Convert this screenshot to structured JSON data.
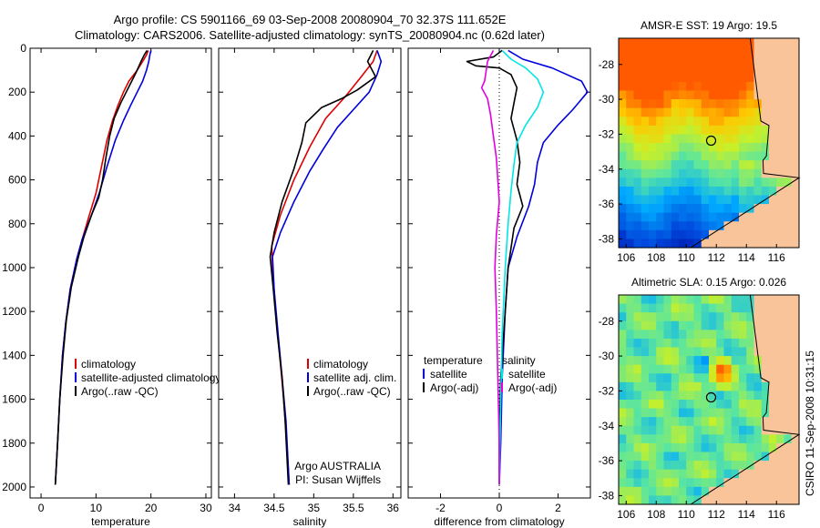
{
  "header": {
    "line1": "Argo profile: CS 5901166_69 03-Sep-2008 20080904_70 32.37S 111.652E",
    "line2": "Climatology: CARS2006. Satellite-adjusted climatology: synTS_20080904.nc (0.62d later)"
  },
  "side_label": "CSIRO 11-Sep-2008 10:31:15",
  "colors": {
    "climatology": "#dd0000",
    "satellite": "#0000dd",
    "argo": "#000000",
    "satellite_salinity": "#00e5e5",
    "argo_salinity": "#e000e0",
    "land": "#f9c49a"
  },
  "chart_data": [
    {
      "type": "line",
      "panel": "temperature",
      "xlabel": "temperature",
      "ylabel": "",
      "xlim": [
        -2,
        31
      ],
      "ylim": [
        2050,
        0
      ],
      "xticks": [
        0,
        10,
        20,
        30
      ],
      "yticks": [
        0,
        200,
        400,
        600,
        800,
        1000,
        1200,
        1400,
        1600,
        1800,
        2000
      ],
      "legend": [
        "climatology",
        "satellite-adjusted climatology",
        "Argo(..raw -QC)"
      ],
      "series": [
        {
          "name": "climatology",
          "color": "#dd0000",
          "points": [
            [
              19.5,
              10
            ],
            [
              19.2,
              30
            ],
            [
              18.5,
              60
            ],
            [
              17.5,
              100
            ],
            [
              16,
              150
            ],
            [
              15,
              200
            ],
            [
              14,
              260
            ],
            [
              13,
              330
            ],
            [
              12,
              420
            ],
            [
              11,
              540
            ],
            [
              10,
              660
            ],
            [
              8.8,
              760
            ],
            [
              7.5,
              870
            ],
            [
              6.5,
              960
            ],
            [
              5.3,
              1100
            ],
            [
              4.5,
              1250
            ],
            [
              3.9,
              1400
            ],
            [
              3.4,
              1600
            ],
            [
              3.0,
              1800
            ],
            [
              2.6,
              1990
            ]
          ]
        },
        {
          "name": "satellite-adjusted climatology",
          "color": "#0000dd",
          "points": [
            [
              20,
              10
            ],
            [
              19.8,
              30
            ],
            [
              19.6,
              60
            ],
            [
              19.2,
              100
            ],
            [
              18.5,
              150
            ],
            [
              17.5,
              200
            ],
            [
              16.3,
              260
            ],
            [
              15,
              330
            ],
            [
              13.5,
              420
            ],
            [
              12,
              540
            ],
            [
              10.6,
              660
            ],
            [
              9.2,
              760
            ],
            [
              7.5,
              870
            ],
            [
              6.5,
              960
            ],
            [
              5.3,
              1100
            ],
            [
              4.5,
              1250
            ],
            [
              3.9,
              1400
            ],
            [
              3.4,
              1600
            ],
            [
              3.0,
              1800
            ],
            [
              2.6,
              1990
            ]
          ]
        },
        {
          "name": "Argo(..raw -QC)",
          "color": "#000000",
          "points": [
            [
              19.3,
              10
            ],
            [
              18.8,
              30
            ],
            [
              18.2,
              60
            ],
            [
              17.3,
              110
            ],
            [
              16.5,
              150
            ],
            [
              15.5,
              200
            ],
            [
              14.5,
              250
            ],
            [
              13.3,
              320
            ],
            [
              12.5,
              400
            ],
            [
              11.8,
              500
            ],
            [
              11.2,
              600
            ],
            [
              10.5,
              680
            ],
            [
              9.2,
              760
            ],
            [
              7.8,
              860
            ],
            [
              6.8,
              950
            ],
            [
              5.5,
              1090
            ],
            [
              4.6,
              1240
            ],
            [
              4.0,
              1400
            ],
            [
              3.4,
              1600
            ],
            [
              3.0,
              1800
            ],
            [
              2.6,
              1990
            ]
          ]
        }
      ]
    },
    {
      "type": "line",
      "panel": "salinity",
      "xlabel": "salinity",
      "ylabel": "",
      "xlim": [
        33.8,
        36.1
      ],
      "ylim": [
        2050,
        0
      ],
      "xticks": [
        34,
        34.5,
        35,
        35.5,
        36
      ],
      "legend": [
        "climatology",
        "satellite adj. clim.",
        "Argo(..raw -QC)"
      ],
      "series": [
        {
          "name": "climatology",
          "color": "#dd0000",
          "points": [
            [
              35.8,
              10
            ],
            [
              35.75,
              60
            ],
            [
              35.6,
              130
            ],
            [
              35.4,
              220
            ],
            [
              35.15,
              320
            ],
            [
              34.95,
              450
            ],
            [
              34.75,
              600
            ],
            [
              34.58,
              760
            ],
            [
              34.47,
              900
            ],
            [
              34.48,
              1000
            ],
            [
              34.52,
              1200
            ],
            [
              34.57,
              1400
            ],
            [
              34.62,
              1600
            ],
            [
              34.66,
              1800
            ],
            [
              34.69,
              1990
            ]
          ]
        },
        {
          "name": "satellite adj. clim.",
          "color": "#0000dd",
          "points": [
            [
              35.8,
              10
            ],
            [
              35.85,
              60
            ],
            [
              35.8,
              120
            ],
            [
              35.7,
              200
            ],
            [
              35.5,
              280
            ],
            [
              35.3,
              360
            ],
            [
              35.12,
              460
            ],
            [
              34.95,
              560
            ],
            [
              34.75,
              700
            ],
            [
              34.58,
              840
            ],
            [
              34.48,
              950
            ],
            [
              34.5,
              1100
            ],
            [
              34.55,
              1300
            ],
            [
              34.6,
              1500
            ],
            [
              34.65,
              1700
            ],
            [
              34.69,
              1990
            ]
          ]
        },
        {
          "name": "Argo(..raw -QC)",
          "color": "#000000",
          "points": [
            [
              35.75,
              10
            ],
            [
              35.68,
              60
            ],
            [
              35.78,
              130
            ],
            [
              35.55,
              190
            ],
            [
              35.35,
              230
            ],
            [
              35.1,
              270
            ],
            [
              34.9,
              340
            ],
            [
              34.85,
              430
            ],
            [
              34.75,
              550
            ],
            [
              34.6,
              700
            ],
            [
              34.5,
              840
            ],
            [
              34.45,
              950
            ],
            [
              34.49,
              1100
            ],
            [
              34.54,
              1300
            ],
            [
              34.6,
              1500
            ],
            [
              34.64,
              1700
            ],
            [
              34.68,
              1990
            ]
          ]
        }
      ]
    },
    {
      "type": "line",
      "panel": "difference",
      "xlabel": "difference from climatology",
      "ylabel": "",
      "xlim": [
        -3.1,
        3.1
      ],
      "ylim": [
        2050,
        0
      ],
      "xticks": [
        -2,
        0,
        2
      ],
      "legend": [
        "temperature",
        "satellite",
        "Argo(-adj)",
        "salinity",
        "satellite",
        "Argo(-adj)"
      ],
      "series": [
        {
          "name": "satellite",
          "group": "temperature",
          "color": "#0000dd",
          "points": [
            [
              0.3,
              10
            ],
            [
              0.8,
              50
            ],
            [
              1.8,
              90
            ],
            [
              2.8,
              150
            ],
            [
              3.0,
              200
            ],
            [
              2.5,
              280
            ],
            [
              2.0,
              350
            ],
            [
              1.5,
              430
            ],
            [
              1.3,
              520
            ],
            [
              1.2,
              620
            ],
            [
              1.0,
              720
            ],
            [
              0.6,
              860
            ],
            [
              0.3,
              1000
            ],
            [
              0.2,
              1200
            ],
            [
              0.1,
              1500
            ],
            [
              0.05,
              1800
            ],
            [
              0,
              1990
            ]
          ]
        },
        {
          "name": "Argo(-adj)",
          "group": "temperature",
          "color": "#000000",
          "points": [
            [
              0.1,
              10
            ],
            [
              -0.2,
              40
            ],
            [
              -1.1,
              60
            ],
            [
              -0.8,
              80
            ],
            [
              0,
              90
            ],
            [
              0.4,
              120
            ],
            [
              0.6,
              180
            ],
            [
              0.5,
              250
            ],
            [
              0.4,
              320
            ],
            [
              0.6,
              420
            ],
            [
              0.7,
              520
            ],
            [
              0.6,
              620
            ],
            [
              0.8,
              720
            ],
            [
              0.5,
              820
            ],
            [
              0.3,
              1000
            ],
            [
              0.2,
              1200
            ],
            [
              0.05,
              1500
            ],
            [
              0,
              1800
            ],
            [
              0,
              1990
            ]
          ]
        },
        {
          "name": "satellite",
          "group": "salinity",
          "color": "#00e5e5",
          "points": [
            [
              0.1,
              10
            ],
            [
              0.4,
              50
            ],
            [
              0.9,
              90
            ],
            [
              1.3,
              140
            ],
            [
              1.5,
              200
            ],
            [
              1.3,
              270
            ],
            [
              0.9,
              350
            ],
            [
              0.6,
              430
            ],
            [
              0.5,
              530
            ],
            [
              0.4,
              650
            ],
            [
              0.3,
              800
            ],
            [
              0.2,
              1000
            ],
            [
              0.1,
              1300
            ],
            [
              0.05,
              1600
            ],
            [
              0,
              1990
            ]
          ]
        },
        {
          "name": "Argo(-adj)",
          "group": "salinity",
          "color": "#e000e0",
          "points": [
            [
              -0.2,
              10
            ],
            [
              -0.4,
              60
            ],
            [
              -0.5,
              150
            ],
            [
              -0.6,
              180
            ],
            [
              -0.4,
              230
            ],
            [
              -0.3,
              300
            ],
            [
              -0.2,
              400
            ],
            [
              -0.1,
              500
            ],
            [
              -0.05,
              600
            ],
            [
              0,
              700
            ],
            [
              -0.1,
              850
            ],
            [
              -0.15,
              1000
            ],
            [
              -0.1,
              1200
            ],
            [
              -0.05,
              1500
            ],
            [
              0,
              1800
            ],
            [
              0,
              1990
            ]
          ]
        }
      ]
    },
    {
      "type": "heatmap",
      "panel": "sst_map",
      "title": "AMSR-E SST: 19  Argo: 19.5",
      "xlim": [
        105.5,
        117.5
      ],
      "ylim": [
        -38.5,
        -26.5
      ],
      "xticks": [
        106,
        108,
        110,
        112,
        114,
        116
      ],
      "yticks": [
        -28,
        -30,
        -32,
        -34,
        -36,
        -38
      ],
      "float_position": [
        111.65,
        -32.37
      ]
    },
    {
      "type": "heatmap",
      "panel": "sla_map",
      "title": "Altimetric SLA: 0.15  Argo: 0.026",
      "xlim": [
        105.5,
        117.5
      ],
      "ylim": [
        -38.5,
        -26.5
      ],
      "xticks": [
        106,
        108,
        110,
        112,
        114,
        116
      ],
      "yticks": [
        -28,
        -30,
        -32,
        -34,
        -36,
        -38
      ],
      "float_position": [
        111.65,
        -32.37
      ]
    }
  ],
  "annotations": {
    "org": "Argo AUSTRALIA",
    "pi": "PI: Susan Wijffels"
  }
}
